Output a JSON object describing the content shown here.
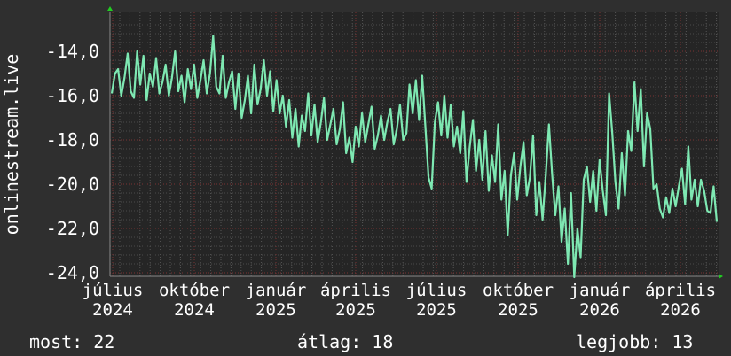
{
  "chart_data": {
    "type": "line",
    "ylabel": "onlinestream.live",
    "ylim": [
      -24.16,
      -12.24
    ],
    "yticks": [
      "-14,0",
      "-16,0",
      "-18,0",
      "-20,0",
      "-22,0",
      "-24,0"
    ],
    "ytick_values": [
      -14,
      -16,
      -18,
      -20,
      -22,
      -24
    ],
    "xtick_labels": [
      "július",
      "2024",
      "október",
      "2024",
      "január",
      "2025",
      "április",
      "2025",
      "július",
      "2025",
      "október",
      "2025",
      "január",
      "2026",
      "április",
      "2026"
    ],
    "grid": true,
    "line_color": "#7ee8b2",
    "series": [
      {
        "values": [
          -15.9,
          -15.0,
          -14.8,
          -16.0,
          -15.2,
          -14.1,
          -15.8,
          -16.1,
          -14.0,
          -15.5,
          -14.2,
          -16.2,
          -15.0,
          -15.6,
          -14.3,
          -15.9,
          -15.4,
          -14.6,
          -16.0,
          -15.2,
          -14.0,
          -15.8,
          -15.1,
          -16.3,
          -14.8,
          -15.7,
          -14.6,
          -16.1,
          -15.3,
          -14.4,
          -15.9,
          -15.0,
          -13.3,
          -15.6,
          -15.9,
          -14.2,
          -16.1,
          -15.4,
          -14.9,
          -16.6,
          -15.0,
          -17.0,
          -16.2,
          -15.1,
          -16.8,
          -14.6,
          -16.4,
          -15.7,
          -14.4,
          -16.0,
          -14.9,
          -16.7,
          -15.3,
          -16.8,
          -16.0,
          -17.4,
          -16.2,
          -17.9,
          -16.6,
          -18.3,
          -16.9,
          -17.6,
          -15.9,
          -17.8,
          -16.4,
          -18.1,
          -17.2,
          -16.1,
          -18.0,
          -17.3,
          -16.6,
          -18.2,
          -17.5,
          -16.3,
          -18.6,
          -17.9,
          -19.0,
          -17.4,
          -18.3,
          -16.8,
          -18.1,
          -17.3,
          -16.5,
          -18.4,
          -17.8,
          -16.9,
          -18.0,
          -17.2,
          -16.6,
          -18.2,
          -17.5,
          -16.4,
          -18.0,
          -17.7,
          -15.5,
          -16.8,
          -15.3,
          -17.1,
          -15.1,
          -17.4,
          -19.7,
          -20.2,
          -17.2,
          -16.3,
          -17.8,
          -16.0,
          -17.9,
          -16.4,
          -18.3,
          -17.4,
          -18.6,
          -16.7,
          -19.9,
          -18.3,
          -17.1,
          -19.4,
          -18.0,
          -19.8,
          -17.6,
          -20.3,
          -18.7,
          -19.9,
          -17.3,
          -20.7,
          -19.4,
          -22.3,
          -19.6,
          -18.6,
          -20.7,
          -19.2,
          -18.1,
          -20.5,
          -19.7,
          -17.8,
          -21.4,
          -19.9,
          -21.6,
          -19.6,
          -17.3,
          -19.5,
          -21.4,
          -20.1,
          -22.6,
          -21.1,
          -23.6,
          -20.4,
          -24.2,
          -22.0,
          -23.3,
          -19.8,
          -19.2,
          -20.8,
          -19.4,
          -21.2,
          -18.9,
          -20.3,
          -21.4,
          -15.9,
          -17.7,
          -19.9,
          -21.1,
          -18.6,
          -20.5,
          -17.6,
          -18.5,
          -15.4,
          -17.6,
          -15.7,
          -19.2,
          -16.8,
          -17.5,
          -20.2,
          -20.0,
          -21.1,
          -21.5,
          -20.6,
          -21.3,
          -20.2,
          -21.0,
          -20.1,
          -19.3,
          -20.9,
          -18.3,
          -20.7,
          -19.8,
          -21.0,
          -19.8,
          -20.3,
          -21.2,
          -21.3,
          -20.1,
          -21.7
        ]
      }
    ]
  },
  "footer": {
    "current": "most: 22",
    "average": "átlag: 18",
    "best": "legjobb: 13"
  },
  "colors": {
    "background": "#2f2f2f",
    "plot": "#252525",
    "grid_major": "#7a3434",
    "axis_arrow": "#22cc22"
  }
}
